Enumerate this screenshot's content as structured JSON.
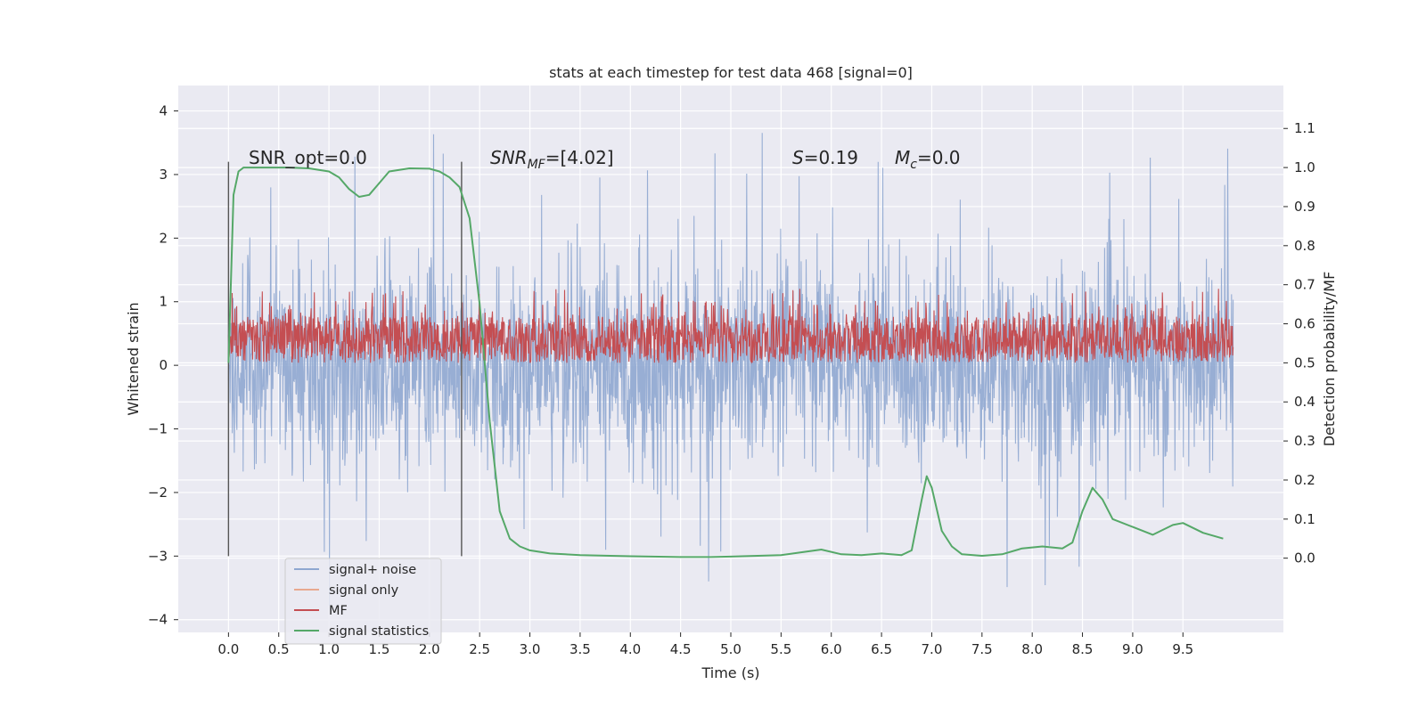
{
  "chart_data": {
    "type": "line",
    "title": "stats at each timestep for test data 468 [signal=0]",
    "xlabel": "Time (s)",
    "ylabel": "Whitened strain",
    "y2label": "Detection probability/MF",
    "xlim": [
      -0.5,
      10.5
    ],
    "ylim": [
      -4.2,
      4.4
    ],
    "y2lim": [
      -0.19,
      1.21
    ],
    "x_ticks": [
      "0.0",
      "0.5",
      "1.0",
      "1.5",
      "2.0",
      "2.5",
      "3.0",
      "3.5",
      "4.0",
      "4.5",
      "5.0",
      "5.5",
      "6.0",
      "6.5",
      "7.0",
      "7.5",
      "8.0",
      "8.5",
      "9.0",
      "9.5"
    ],
    "y_ticks": [
      "−4",
      "−3",
      "−2",
      "−1",
      "0",
      "1",
      "2",
      "3",
      "4"
    ],
    "y2_ticks": [
      "0.0",
      "0.1",
      "0.2",
      "0.3",
      "0.4",
      "0.5",
      "0.6",
      "0.7",
      "0.8",
      "0.9",
      "1.0",
      "1.1"
    ],
    "grid": true,
    "legend": "lower-left",
    "annotations": {
      "snr_opt": "SNR_opt=0.0",
      "snr_mf_sym": "SNR",
      "snr_mf_sub": "MF",
      "snr_mf_val": "=[4.02]",
      "s_sym": "S",
      "s_val": "=0.19",
      "mc_sym": "M",
      "mc_sub": "c",
      "mc_val": "=0.0"
    },
    "vlines": [
      0.0,
      2.32
    ],
    "series": [
      {
        "name": "signal+ noise",
        "color": "#8fa7d0",
        "axis": "left",
        "noise_envelope": {
          "x_start": 0.0,
          "x_end": 10.0,
          "dense_min": -1.9,
          "dense_max": 1.9,
          "peak_min": -3.85,
          "peak_max": 4.05,
          "mean": 0.0
        }
      },
      {
        "name": "signal only",
        "color": "#e8a98f",
        "axis": "left",
        "x": [
          0.0,
          10.0
        ],
        "y": [
          0.0,
          0.0
        ]
      },
      {
        "name": "MF",
        "color": "#c44e52",
        "axis": "right",
        "noise_envelope": {
          "x_start": 0.0,
          "x_end": 10.0,
          "min": 0.5,
          "max": 0.66,
          "peak_max": 0.69
        }
      },
      {
        "name": "signal statistics",
        "color": "#55a868",
        "axis": "right",
        "x": [
          0.0,
          0.05,
          0.1,
          0.15,
          0.25,
          0.4,
          0.6,
          0.8,
          1.0,
          1.1,
          1.2,
          1.3,
          1.4,
          1.5,
          1.6,
          1.8,
          2.0,
          2.1,
          2.2,
          2.3,
          2.4,
          2.5,
          2.6,
          2.7,
          2.8,
          2.9,
          3.0,
          3.2,
          3.5,
          4.0,
          4.5,
          4.8,
          5.0,
          5.5,
          5.7,
          5.9,
          6.1,
          6.3,
          6.5,
          6.7,
          6.8,
          6.9,
          6.95,
          7.0,
          7.1,
          7.2,
          7.3,
          7.5,
          7.7,
          7.9,
          8.1,
          8.3,
          8.4,
          8.5,
          8.6,
          8.7,
          8.8,
          9.0,
          9.2,
          9.4,
          9.5,
          9.7,
          9.9
        ],
        "y": [
          0.5,
          0.93,
          0.99,
          1.0,
          1.0,
          1.0,
          1.0,
          0.998,
          0.99,
          0.975,
          0.945,
          0.925,
          0.93,
          0.96,
          0.99,
          0.998,
          0.997,
          0.99,
          0.975,
          0.95,
          0.87,
          0.65,
          0.35,
          0.12,
          0.05,
          0.03,
          0.02,
          0.012,
          0.008,
          0.005,
          0.003,
          0.003,
          0.004,
          0.008,
          0.015,
          0.022,
          0.01,
          0.008,
          0.012,
          0.008,
          0.02,
          0.15,
          0.21,
          0.18,
          0.07,
          0.03,
          0.01,
          0.006,
          0.01,
          0.025,
          0.03,
          0.025,
          0.04,
          0.12,
          0.18,
          0.15,
          0.1,
          0.08,
          0.06,
          0.085,
          0.09,
          0.065,
          0.05
        ]
      }
    ]
  }
}
